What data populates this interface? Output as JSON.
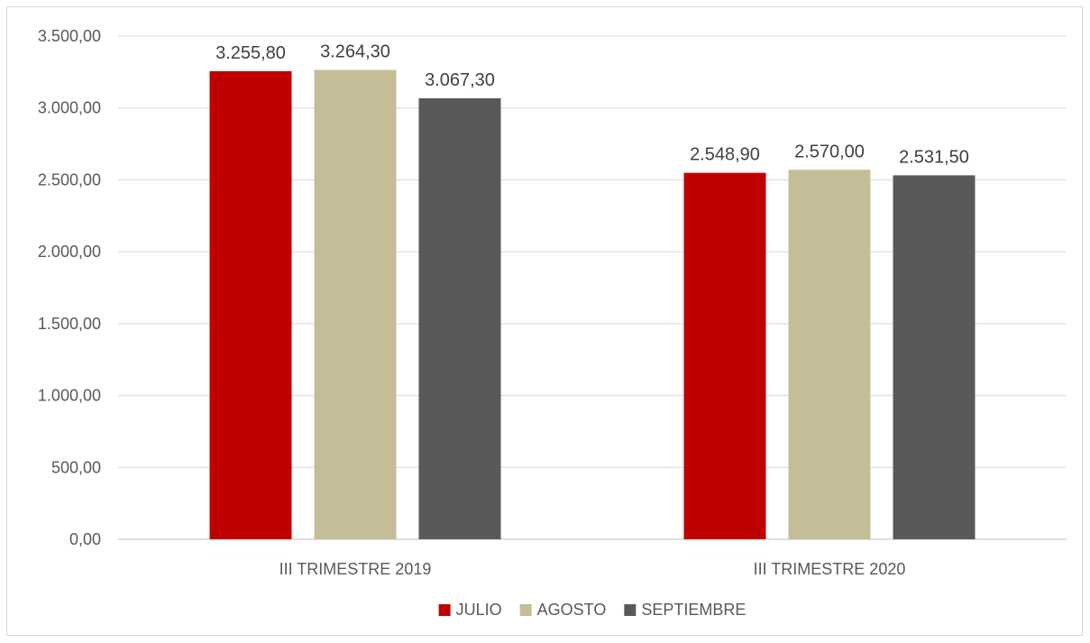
{
  "chart_data": {
    "type": "bar",
    "categories": [
      "III TRIMESTRE 2019",
      "III TRIMESTRE 2020"
    ],
    "series": [
      {
        "name": "JULIO",
        "color": "#C00000",
        "values": [
          3255.8,
          2548.9
        ],
        "labels": [
          "3.255,80",
          "2.548,90"
        ]
      },
      {
        "name": "AGOSTO",
        "color": "#C4BD97",
        "values": [
          3264.3,
          2570.0
        ],
        "labels": [
          "3.264,30",
          "2.570,00"
        ]
      },
      {
        "name": "SEPTIEMBRE",
        "color": "#595959",
        "values": [
          3067.3,
          2531.5
        ],
        "labels": [
          "3.067,30",
          "2.531,50"
        ]
      }
    ],
    "yticks": [
      0,
      500,
      1000,
      1500,
      2000,
      2500,
      3000,
      3500
    ],
    "ytick_labels": [
      "0,00",
      "500,00",
      "1.000,00",
      "1.500,00",
      "2.000,00",
      "2.500,00",
      "3.000,00",
      "3.500,00"
    ],
    "ylim": [
      0,
      3500
    ],
    "grid": true,
    "legend": "bottom",
    "title": "",
    "xlabel": "",
    "ylabel": ""
  }
}
